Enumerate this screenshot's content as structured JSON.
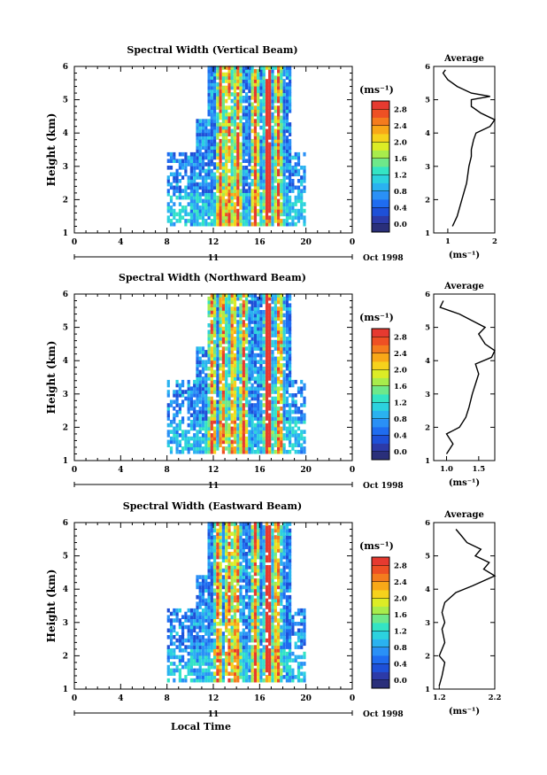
{
  "figure": {
    "xlabel": "Local Time",
    "date_label": "Oct 1998",
    "day_label": "11",
    "x_ticks": [
      "0",
      "4",
      "8",
      "12",
      "16",
      "20",
      "0"
    ],
    "y_ticks": [
      "1",
      "2",
      "3",
      "4",
      "5",
      "6"
    ],
    "ylabel": "Height (km)"
  },
  "colorbar": {
    "unit": "(ms⁻¹)",
    "colors": [
      "#2a2f7a",
      "#2c3aa8",
      "#1e50d8",
      "#1f6cf0",
      "#2a90f6",
      "#2ab2f0",
      "#2cd2de",
      "#34e4c4",
      "#6ee88a",
      "#a8ec4c",
      "#dcec26",
      "#f6d21c",
      "#f8a818",
      "#f47c1e",
      "#ee5024",
      "#e63a30"
    ]
  },
  "chart_data": [
    {
      "type": "heatmap",
      "title": "Spectral Width (Vertical Beam)",
      "xlabel": "",
      "ylabel": "Height (km)",
      "xlim": [
        0,
        24
      ],
      "ylim": [
        1,
        6
      ],
      "data_extent": {
        "time": [
          8,
          20
        ],
        "height": [
          1.2,
          5.9
        ]
      },
      "colorbar": {
        "label": "(ms⁻¹)",
        "range": [
          0,
          3.0
        ],
        "ticks": [
          "0.0",
          "0.4",
          "0.8",
          "1.2",
          "1.6",
          "2.0",
          "2.4",
          "2.8"
        ]
      },
      "high_width_bands_local_time": [
        12.5,
        13.2,
        14.0,
        15.5,
        16.6,
        17.5
      ],
      "profile": {
        "title": "Average",
        "xlabel": "(ms⁻¹)",
        "xticks": [
          "1",
          "2"
        ],
        "xlim": [
          0.7,
          2.0
        ],
        "height": [
          1.2,
          1.5,
          2.0,
          2.5,
          3.0,
          3.3,
          3.5,
          3.8,
          4.0,
          4.2,
          4.4,
          4.6,
          4.8,
          5.0,
          5.1,
          5.2,
          5.4,
          5.6,
          5.8,
          5.9
        ],
        "value": [
          1.1,
          1.2,
          1.3,
          1.4,
          1.45,
          1.5,
          1.5,
          1.55,
          1.6,
          1.9,
          2.0,
          1.7,
          1.5,
          1.5,
          1.9,
          1.5,
          1.2,
          1.0,
          0.9,
          0.95
        ]
      }
    },
    {
      "type": "heatmap",
      "title": "Spectral Width (Northward Beam)",
      "xlabel": "",
      "ylabel": "Height (km)",
      "xlim": [
        0,
        24
      ],
      "ylim": [
        1,
        6
      ],
      "data_extent": {
        "time": [
          8,
          20
        ],
        "height": [
          1.2,
          5.9
        ]
      },
      "colorbar": {
        "label": "(ms⁻¹)",
        "range": [
          0,
          3.0
        ],
        "ticks": [
          "0.0",
          "0.4",
          "0.8",
          "1.2",
          "1.6",
          "2.0",
          "2.4",
          "2.8"
        ]
      },
      "high_width_bands_local_time": [
        11.8,
        12.7,
        13.6,
        14.5,
        16.6,
        17.6
      ],
      "profile": {
        "title": "Average",
        "xlabel": "(ms⁻¹)",
        "xticks": [
          "1.0",
          "1.5"
        ],
        "xlim": [
          0.8,
          1.75
        ],
        "height": [
          1.2,
          1.5,
          1.8,
          2.0,
          2.3,
          2.6,
          3.0,
          3.3,
          3.6,
          3.9,
          4.1,
          4.3,
          4.5,
          4.8,
          5.0,
          5.2,
          5.4,
          5.6,
          5.8
        ],
        "value": [
          1.0,
          1.1,
          1.0,
          1.2,
          1.3,
          1.35,
          1.4,
          1.45,
          1.5,
          1.45,
          1.7,
          1.75,
          1.6,
          1.5,
          1.6,
          1.4,
          1.2,
          0.9,
          0.95
        ]
      }
    },
    {
      "type": "heatmap",
      "title": "Spectral Width (Eastward Beam)",
      "xlabel": "Local Time",
      "ylabel": "Height (km)",
      "xlim": [
        0,
        24
      ],
      "ylim": [
        1,
        6
      ],
      "data_extent": {
        "time": [
          8,
          20
        ],
        "height": [
          1.2,
          5.9
        ]
      },
      "colorbar": {
        "label": "(ms⁻¹)",
        "range": [
          0,
          3.0
        ],
        "ticks": [
          "0.0",
          "0.4",
          "0.8",
          "1.2",
          "1.6",
          "2.0",
          "2.4",
          "2.8"
        ]
      },
      "high_width_bands_local_time": [
        12.3,
        13.2,
        13.9,
        15.5,
        16.6,
        17.4
      ],
      "profile": {
        "title": "Average",
        "xlabel": "(ms⁻¹)",
        "xticks": [
          "1.2",
          "2.2"
        ],
        "xlim": [
          1.1,
          2.2
        ],
        "height": [
          1.1,
          1.4,
          1.8,
          2.0,
          2.4,
          2.8,
          3.0,
          3.3,
          3.6,
          3.9,
          4.1,
          4.4,
          4.6,
          4.8,
          5.0,
          5.2,
          5.4,
          5.6,
          5.8
        ],
        "value": [
          1.2,
          1.25,
          1.3,
          1.2,
          1.3,
          1.25,
          1.3,
          1.25,
          1.3,
          1.5,
          1.8,
          2.2,
          2.0,
          2.1,
          1.85,
          1.95,
          1.7,
          1.6,
          1.5
        ]
      }
    }
  ]
}
